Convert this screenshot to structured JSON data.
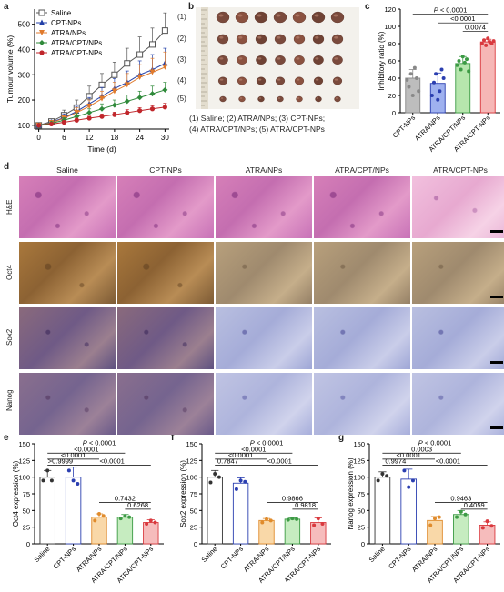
{
  "panel_labels": {
    "a": "a",
    "b": "b",
    "c": "c",
    "d": "d",
    "e": "e",
    "f": "f",
    "g": "g"
  },
  "chart_data": [
    {
      "id": "a",
      "type": "line",
      "xlabel": "Time (d)",
      "ylabel": "Tumour volume (%)",
      "x": [
        0,
        3,
        6,
        9,
        12,
        15,
        18,
        21,
        24,
        27,
        30
      ],
      "xticks": [
        0,
        6,
        12,
        18,
        24,
        30
      ],
      "yticks": [
        100,
        200,
        300,
        400,
        500
      ],
      "xlim": [
        -1,
        31
      ],
      "ylim": [
        85,
        560
      ],
      "legend_position": "top-left",
      "series": [
        {
          "name": "Saline",
          "color": "#555555",
          "marker": "square-open",
          "values": [
            100,
            115,
            140,
            170,
            215,
            260,
            300,
            345,
            380,
            420,
            475
          ],
          "err": [
            5,
            10,
            20,
            30,
            40,
            45,
            50,
            60,
            70,
            65,
            70
          ]
        },
        {
          "name": "CPT-NPs",
          "color": "#2340a8",
          "marker": "triangle-up",
          "values": [
            100,
            112,
            130,
            155,
            185,
            215,
            245,
            270,
            300,
            320,
            345
          ],
          "err": [
            5,
            8,
            15,
            20,
            25,
            35,
            40,
            45,
            55,
            60,
            60
          ]
        },
        {
          "name": "ATRA/NPs",
          "color": "#e07a2c",
          "marker": "triangle-down",
          "values": [
            100,
            110,
            128,
            150,
            175,
            205,
            235,
            260,
            290,
            310,
            330
          ],
          "err": [
            5,
            8,
            12,
            20,
            25,
            30,
            35,
            45,
            50,
            55,
            60
          ]
        },
        {
          "name": "ATRA/CPT/NPs",
          "color": "#2f8a3a",
          "marker": "diamond",
          "values": [
            100,
            108,
            120,
            135,
            150,
            165,
            180,
            195,
            210,
            225,
            240
          ],
          "err": [
            4,
            6,
            10,
            12,
            15,
            20,
            20,
            25,
            25,
            30,
            30
          ]
        },
        {
          "name": "ATRA/CPT-NPs",
          "color": "#c0262b",
          "marker": "circle",
          "values": [
            100,
            105,
            112,
            120,
            128,
            135,
            142,
            150,
            158,
            165,
            172
          ],
          "err": [
            3,
            5,
            6,
            8,
            8,
            10,
            10,
            12,
            12,
            12,
            15
          ]
        }
      ]
    },
    {
      "id": "c",
      "type": "bar",
      "ylabel": "Inhibitory ratio (%)",
      "categories": [
        "CPT-NPs",
        "ATRA/NPs",
        "ATRA/CPT/NPs",
        "ATRA/CPT-NPs"
      ],
      "values": [
        40,
        34,
        57,
        82
      ],
      "err": [
        10,
        12,
        8,
        3
      ],
      "colors": [
        "#888888",
        "#2b3fb0",
        "#3d9b45",
        "#d9393e"
      ],
      "fills": [
        "#bdbdbd",
        "#9fb1ef",
        "#b6e6ad",
        "#f6b7b6"
      ],
      "points": [
        [
          38,
          30,
          45,
          20,
          52,
          40,
          25
        ],
        [
          20,
          35,
          45,
          15,
          25,
          50,
          40
        ],
        [
          55,
          60,
          50,
          65,
          58,
          62,
          48
        ],
        [
          80,
          84,
          78,
          86,
          82,
          80,
          83
        ]
      ],
      "yticks": [
        0,
        20,
        40,
        60,
        80,
        100,
        120
      ],
      "ylim": [
        0,
        120
      ],
      "brackets": [
        {
          "from": 0,
          "to": 3,
          "label": "P < 0.0001",
          "y": 114,
          "italic_p": true
        },
        {
          "from": 1,
          "to": 3,
          "label": "<0.0001",
          "y": 104
        },
        {
          "from": 2,
          "to": 3,
          "label": "0.0074",
          "y": 94
        }
      ]
    },
    {
      "id": "e",
      "type": "bar",
      "ylabel": "Oct4 expression (%)",
      "categories": [
        "Saline",
        "CPT-NPs",
        "ATRA/NPs",
        "ATRA/CPT/NPs",
        "ATRA/CPT-NPs"
      ],
      "values": [
        100,
        100,
        40,
        40,
        32
      ],
      "err": [
        10,
        15,
        5,
        4,
        4
      ],
      "points": [
        [
          95,
          110,
          95
        ],
        [
          110,
          95,
          90
        ],
        [
          35,
          45,
          42
        ],
        [
          38,
          42,
          40
        ],
        [
          30,
          35,
          32
        ]
      ],
      "colors": [
        "#333333",
        "#2b3fb0",
        "#e08b2c",
        "#3d9b45",
        "#d9393e"
      ],
      "fills": [
        "#ffffff",
        "#ffffff",
        "#f9d8a8",
        "#c6ecc0",
        "#f6bcbc"
      ],
      "yticks": [
        0,
        25,
        50,
        75,
        100,
        125,
        150
      ],
      "ylim": [
        0,
        150
      ],
      "brackets": [
        {
          "from": 0,
          "to": 4,
          "label": "P < 0.0001",
          "y": 145,
          "italic_p": true
        },
        {
          "from": 0,
          "to": 3,
          "label": "<0.0001",
          "y": 136
        },
        {
          "from": 0,
          "to": 2,
          "label": "<0.0001",
          "y": 127
        },
        {
          "from": 0,
          "to": 1,
          "label": ">0.9999",
          "y": 118
        },
        {
          "from": 1,
          "to": 4,
          "label": "<0.0001",
          "y": 118
        },
        {
          "from": 2,
          "to": 4,
          "label": "0.7432",
          "y": 62
        },
        {
          "from": 3,
          "to": 4,
          "label": "0.6268",
          "y": 52
        }
      ]
    },
    {
      "id": "f",
      "type": "bar",
      "ylabel": "Sox2 expression (%)",
      "categories": [
        "Saline",
        "CPT-NPs",
        "ATRA/NPs",
        "ATRA/CPT/NPs",
        "ATRA/CPT-NPs"
      ],
      "values": [
        100,
        91,
        35,
        37,
        32
      ],
      "err": [
        10,
        8,
        3,
        2,
        7
      ],
      "points": [
        [
          92,
          105,
          100
        ],
        [
          82,
          95,
          93
        ],
        [
          32,
          37,
          35
        ],
        [
          36,
          38,
          37
        ],
        [
          28,
          38,
          30
        ]
      ],
      "colors": [
        "#333333",
        "#2b3fb0",
        "#e08b2c",
        "#3d9b45",
        "#d9393e"
      ],
      "fills": [
        "#ffffff",
        "#ffffff",
        "#f9d8a8",
        "#c6ecc0",
        "#f6bcbc"
      ],
      "yticks": [
        0,
        25,
        50,
        75,
        100,
        125,
        150
      ],
      "ylim": [
        0,
        150
      ],
      "brackets": [
        {
          "from": 0,
          "to": 4,
          "label": "P < 0.0001",
          "y": 145,
          "italic_p": true
        },
        {
          "from": 0,
          "to": 3,
          "label": "<0.0001",
          "y": 136
        },
        {
          "from": 0,
          "to": 2,
          "label": "<0.0001",
          "y": 127
        },
        {
          "from": 0,
          "to": 1,
          "label": "0.7847",
          "y": 118
        },
        {
          "from": 1,
          "to": 4,
          "label": "<0.0001",
          "y": 118
        },
        {
          "from": 2,
          "to": 4,
          "label": "0.9866",
          "y": 62
        },
        {
          "from": 3,
          "to": 4,
          "label": "0.9818",
          "y": 52
        }
      ]
    },
    {
      "id": "g",
      "type": "bar",
      "ylabel": "Nanog expression (%)",
      "categories": [
        "Saline",
        "CPT-NPs",
        "ATRA/NPs",
        "ATRA/CPT/NPs",
        "ATRA/CPT-NPs"
      ],
      "values": [
        100,
        97,
        35,
        44,
        28
      ],
      "err": [
        8,
        15,
        6,
        6,
        5
      ],
      "points": [
        [
          95,
          105,
          102
        ],
        [
          110,
          85,
          95
        ],
        [
          28,
          38,
          40
        ],
        [
          40,
          48,
          44
        ],
        [
          24,
          34,
          27
        ]
      ],
      "colors": [
        "#333333",
        "#2b3fb0",
        "#e08b2c",
        "#3d9b45",
        "#d9393e"
      ],
      "fills": [
        "#ffffff",
        "#ffffff",
        "#f9d8a8",
        "#c6ecc0",
        "#f6bcbc"
      ],
      "yticks": [
        0,
        25,
        50,
        75,
        100,
        125,
        150
      ],
      "ylim": [
        0,
        150
      ],
      "brackets": [
        {
          "from": 0,
          "to": 4,
          "label": "P < 0.0001",
          "y": 145,
          "italic_p": true
        },
        {
          "from": 0,
          "to": 3,
          "label": "0.0003",
          "y": 136
        },
        {
          "from": 0,
          "to": 2,
          "label": "<0.0001",
          "y": 127
        },
        {
          "from": 0,
          "to": 1,
          "label": "0.9974",
          "y": 118
        },
        {
          "from": 1,
          "to": 4,
          "label": "<0.0001",
          "y": 118
        },
        {
          "from": 2,
          "to": 4,
          "label": "0.9463",
          "y": 62
        },
        {
          "from": 3,
          "to": 4,
          "label": "0.4059",
          "y": 52
        }
      ]
    }
  ],
  "tumor_photo": {
    "row_labels": [
      "(1)",
      "(2)",
      "(3)",
      "(4)",
      "(5)"
    ],
    "counts": [
      7,
      7,
      7,
      7,
      7
    ],
    "tumor_scale": [
      1.0,
      0.85,
      0.8,
      0.7,
      0.5
    ],
    "caption_line1": "(1) Saline; (2) ATRA/NPs; (3) CPT-NPs;",
    "caption_line2": "(4) ATRA/CPT/NPs; (5) ATRA/CPT-NPs"
  },
  "histology": {
    "columns": [
      "Saline",
      "CPT-NPs",
      "ATRA/NPs",
      "ATRA/CPT/NPs",
      "ATRA/CPT-NPs"
    ],
    "rows": [
      {
        "label": "H&E",
        "style": "he"
      },
      {
        "label": "Oct4",
        "style": "oct"
      },
      {
        "label": "Sox2",
        "style": "sox"
      },
      {
        "label": "Nanog",
        "style": "nan"
      }
    ]
  }
}
